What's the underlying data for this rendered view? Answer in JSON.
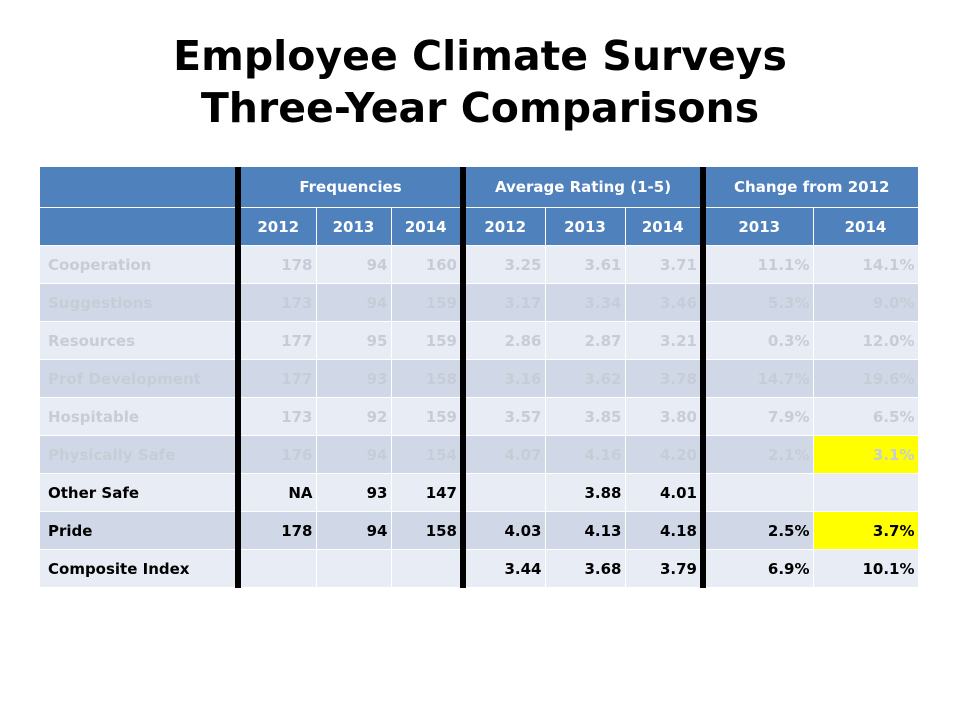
{
  "title": {
    "line1": "Employee Climate Surveys",
    "line2": "Three-Year Comparisons"
  },
  "table": {
    "group_headers": {
      "frequencies": "Frequencies",
      "average": "Average Rating (1-5)",
      "change": "Change from 2012"
    },
    "year_headers": [
      "2012",
      "2013",
      "2014",
      "2012",
      "2013",
      "2014",
      "2013",
      "2014"
    ],
    "rows": [
      {
        "name": "Cooperation",
        "cells": [
          "178",
          "94",
          "160",
          "3.25",
          "3.61",
          "3.71",
          "11.1%",
          "14.1%"
        ]
      },
      {
        "name": "Suggestions",
        "cells": [
          "173",
          "94",
          "159",
          "3.17",
          "3.34",
          "3.46",
          "5.3%",
          "9.0%"
        ]
      },
      {
        "name": "Resources",
        "cells": [
          "177",
          "95",
          "159",
          "2.86",
          "2.87",
          "3.21",
          "0.3%",
          "12.0%"
        ]
      },
      {
        "name": "Prof Development",
        "cells": [
          "177",
          "93",
          "158",
          "3.16",
          "3.62",
          "3.78",
          "14.7%",
          "19.6%"
        ]
      },
      {
        "name": "Hospitable",
        "cells": [
          "173",
          "92",
          "159",
          "3.57",
          "3.85",
          "3.80",
          "7.9%",
          "6.5%"
        ]
      },
      {
        "name": "Physically Safe",
        "cells": [
          "176",
          "94",
          "154",
          "4.07",
          "4.16",
          "4.20",
          "2.1%",
          "3.1%"
        ]
      },
      {
        "name": "Other Safe",
        "cells": [
          "NA",
          "93",
          "147",
          "",
          "3.88",
          "4.01",
          "",
          ""
        ]
      },
      {
        "name": "Pride",
        "cells": [
          "178",
          "94",
          "158",
          "4.03",
          "4.13",
          "4.18",
          "2.5%",
          "3.7%"
        ]
      },
      {
        "name": "Composite Index",
        "cells": [
          "",
          "",
          "",
          "3.44",
          "3.68",
          "3.79",
          "6.9%",
          "10.1%"
        ]
      }
    ]
  },
  "colors": {
    "header": "#4f81bd",
    "band_light": "#e8ecf4",
    "band_dark": "#d0d8e8",
    "highlight": "#ffff00",
    "faded_text": "#c7cdd6"
  }
}
